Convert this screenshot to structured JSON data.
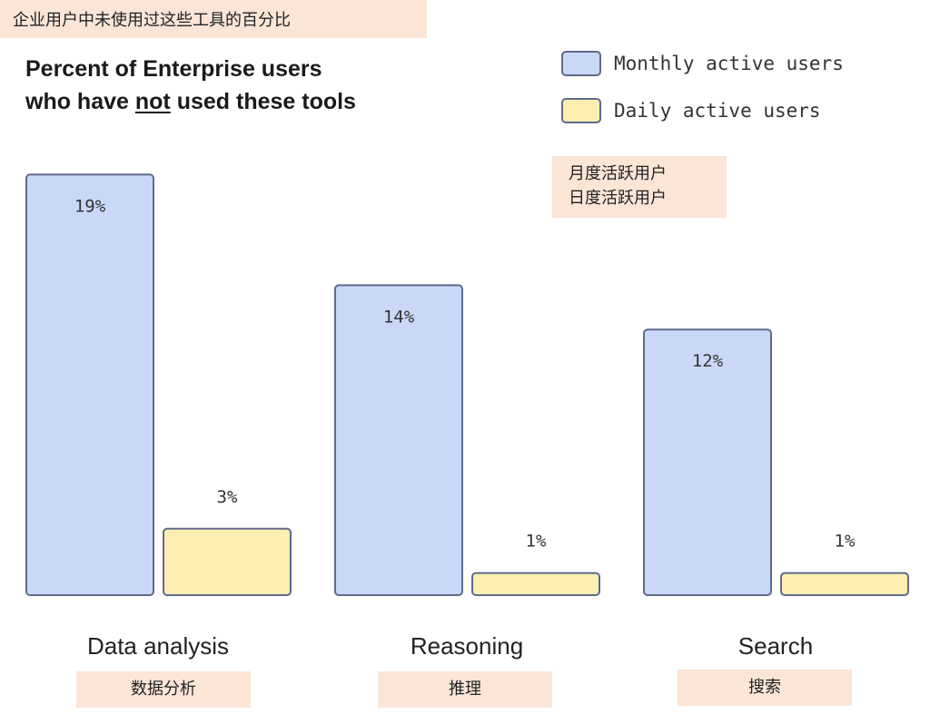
{
  "cn_title": "企业用户中未使用过这些工具的百分比",
  "cn_legend": {
    "monthly": "月度活跃用户",
    "daily": "日度活跃用户"
  },
  "title": {
    "line1": "Percent of Enterprise users",
    "line2_before": "who have ",
    "line2_underlined": "not",
    "line2_after": " used these tools"
  },
  "legend": {
    "monthly": "Monthly active users",
    "daily": "Daily active users"
  },
  "colors": {
    "monthly_fill": "#c9d8f6",
    "daily_fill": "#fbeeb0",
    "bar_stroke": "#5e6a8a",
    "cn_box": "#fbe5d6"
  },
  "chart_data": {
    "type": "bar",
    "title": "Percent of Enterprise users who have not used these tools",
    "categories": [
      "Data analysis",
      "Reasoning",
      "Search"
    ],
    "categories_cn": [
      "数据分析",
      "推理",
      "搜索"
    ],
    "series": [
      {
        "name": "Monthly active users",
        "values": [
          19,
          14,
          12
        ],
        "labels": [
          "19%",
          "14%",
          "12%"
        ]
      },
      {
        "name": "Daily active users",
        "values": [
          3,
          1,
          1
        ],
        "labels": [
          "3%",
          "1%",
          "1%"
        ]
      }
    ],
    "xlabel": "",
    "ylabel": "",
    "ylim": [
      0,
      19
    ],
    "grid": false,
    "legend_position": "top-right"
  }
}
